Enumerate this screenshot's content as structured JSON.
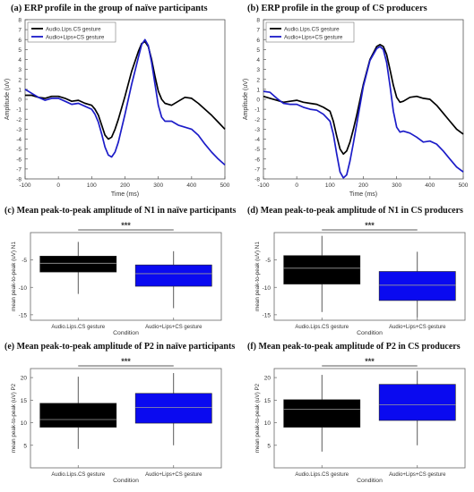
{
  "chart_data": [
    {
      "id": "a",
      "type": "line",
      "title": "(a) ERP profile in the group of naïve participants",
      "xlabel": "Time (ms)",
      "ylabel": "Amplitude (uV)",
      "xlim": [
        -100,
        500
      ],
      "ylim": [
        -8,
        8
      ],
      "xticks": [
        -100,
        0,
        100,
        200,
        300,
        400,
        500
      ],
      "yticks": [
        -8,
        -7,
        -6,
        -5,
        -4,
        -3,
        -2,
        -1,
        0,
        1,
        2,
        3,
        4,
        5,
        6,
        7,
        8
      ],
      "legend_position": "top-left",
      "series": [
        {
          "name": "Audio.Lips.CS gesture",
          "color": "#000000",
          "x": [
            -100,
            -80,
            -60,
            -40,
            -20,
            0,
            20,
            40,
            60,
            80,
            100,
            110,
            120,
            130,
            140,
            150,
            160,
            170,
            180,
            200,
            220,
            240,
            250,
            260,
            270,
            280,
            290,
            300,
            310,
            320,
            340,
            360,
            380,
            400,
            420,
            440,
            460,
            480,
            500
          ],
          "y": [
            0.4,
            0.4,
            0.2,
            0.1,
            0.3,
            0.3,
            0.1,
            -0.2,
            -0.1,
            -0.4,
            -0.6,
            -1.0,
            -1.6,
            -2.6,
            -3.6,
            -4.0,
            -3.8,
            -3.0,
            -2.0,
            0.3,
            2.8,
            4.8,
            5.6,
            5.8,
            5.3,
            4.0,
            2.3,
            0.8,
            0.0,
            -0.4,
            -0.6,
            -0.2,
            0.2,
            0.1,
            -0.4,
            -1.0,
            -1.6,
            -2.3,
            -3.0
          ]
        },
        {
          "name": "Audio+Lips+CS gesture",
          "color": "#1c1cc8",
          "x": [
            -100,
            -80,
            -60,
            -40,
            -20,
            0,
            20,
            40,
            60,
            80,
            100,
            110,
            120,
            130,
            140,
            150,
            160,
            170,
            180,
            200,
            220,
            240,
            250,
            260,
            270,
            280,
            290,
            300,
            310,
            320,
            340,
            360,
            380,
            400,
            420,
            440,
            460,
            480,
            500
          ],
          "y": [
            1.0,
            0.6,
            0.2,
            -0.1,
            0.1,
            0.1,
            -0.2,
            -0.5,
            -0.4,
            -0.7,
            -1.0,
            -1.5,
            -2.3,
            -3.5,
            -4.8,
            -5.6,
            -5.8,
            -5.3,
            -4.3,
            -1.5,
            1.5,
            4.2,
            5.5,
            6.0,
            5.4,
            3.7,
            1.5,
            -0.6,
            -1.8,
            -2.2,
            -2.2,
            -2.6,
            -2.8,
            -3.0,
            -3.6,
            -4.5,
            -5.3,
            -6.0,
            -6.6
          ]
        }
      ]
    },
    {
      "id": "b",
      "type": "line",
      "title": "(b) ERP profile in the group of CS  producers",
      "xlabel": "Time (ms)",
      "ylabel": "Amplitude (uV)",
      "xlim": [
        -100,
        500
      ],
      "ylim": [
        -8,
        8
      ],
      "xticks": [
        -100,
        0,
        100,
        200,
        300,
        400,
        500
      ],
      "yticks": [
        -8,
        -7,
        -6,
        -5,
        -4,
        -3,
        -2,
        -1,
        0,
        1,
        2,
        3,
        4,
        5,
        6,
        7,
        8
      ],
      "legend_position": "top-left",
      "series": [
        {
          "name": "Audio.Lips.CS gesture",
          "color": "#000000",
          "x": [
            -100,
            -80,
            -60,
            -40,
            -20,
            0,
            20,
            40,
            60,
            80,
            100,
            110,
            120,
            130,
            140,
            150,
            160,
            170,
            180,
            200,
            220,
            240,
            250,
            260,
            270,
            280,
            290,
            300,
            310,
            320,
            340,
            360,
            380,
            400,
            420,
            440,
            460,
            480,
            500
          ],
          "y": [
            0.3,
            0.1,
            -0.1,
            -0.3,
            -0.2,
            -0.1,
            -0.3,
            -0.4,
            -0.5,
            -0.8,
            -1.2,
            -2.2,
            -3.7,
            -5.0,
            -5.5,
            -5.2,
            -4.3,
            -3.0,
            -1.6,
            1.5,
            4.0,
            5.3,
            5.5,
            5.3,
            4.5,
            3.0,
            1.4,
            0.2,
            -0.3,
            -0.2,
            0.2,
            0.3,
            0.1,
            0.0,
            -0.6,
            -1.4,
            -2.2,
            -3.0,
            -3.5
          ]
        },
        {
          "name": "Audio+Lips+CS gesture",
          "color": "#1c1cc8",
          "x": [
            -100,
            -80,
            -60,
            -40,
            -20,
            0,
            20,
            40,
            60,
            80,
            100,
            110,
            120,
            130,
            140,
            150,
            160,
            170,
            180,
            200,
            220,
            240,
            250,
            260,
            270,
            280,
            290,
            300,
            310,
            320,
            340,
            360,
            380,
            400,
            420,
            440,
            460,
            480,
            500
          ],
          "y": [
            0.8,
            0.7,
            0.1,
            -0.4,
            -0.5,
            -0.5,
            -0.8,
            -1.0,
            -1.1,
            -1.5,
            -2.2,
            -3.5,
            -5.5,
            -7.3,
            -7.9,
            -7.6,
            -6.2,
            -4.4,
            -2.5,
            1.3,
            3.9,
            5.1,
            5.3,
            5.0,
            3.7,
            1.4,
            -1.2,
            -2.8,
            -3.3,
            -3.2,
            -3.4,
            -3.8,
            -4.3,
            -4.2,
            -4.5,
            -5.2,
            -6.0,
            -6.8,
            -7.3
          ]
        }
      ]
    },
    {
      "id": "c",
      "type": "boxplot",
      "title": "(c) Mean peak-to-peak amplitude of N1 in naïve participants",
      "xlabel": "Condition",
      "ylabel": "mean peak-to-peak (uV) N1",
      "ylim": [
        -16,
        0
      ],
      "yticks": [
        -15,
        -10,
        -5
      ],
      "significance": "***",
      "categories": [
        "Audio.Lips.CS gesture",
        "Audio+Lips+CS gesture"
      ],
      "boxes": [
        {
          "color": "#000000",
          "whisker_low": -11.2,
          "q1": -7.2,
          "median": -5.6,
          "q3": -4.3,
          "whisker_high": -1.7
        },
        {
          "color": "#0a0af0",
          "whisker_low": -13.8,
          "q1": -9.8,
          "median": -7.5,
          "q3": -5.9,
          "whisker_high": -3.4
        }
      ]
    },
    {
      "id": "d",
      "type": "boxplot",
      "title": "(d) Mean peak-to-peak amplitude of N1 in CS producers",
      "xlabel": "Condition",
      "ylabel": "mean peak-to-peak (uV) N1",
      "ylim": [
        -16,
        0
      ],
      "yticks": [
        -15,
        -10,
        -5
      ],
      "significance": "***",
      "categories": [
        "Audio.Lips.CS gesture",
        "Audio+Lips+CS gesture"
      ],
      "boxes": [
        {
          "color": "#000000",
          "whisker_low": -14.5,
          "q1": -9.4,
          "median": -6.5,
          "q3": -4.2,
          "whisker_high": -0.6
        },
        {
          "color": "#0a0af0",
          "whisker_low": -15.5,
          "q1": -12.4,
          "median": -9.6,
          "q3": -7.1,
          "whisker_high": -3.5
        }
      ]
    },
    {
      "id": "e",
      "type": "boxplot",
      "title": "(e) Mean peak-to-peak amplitude of P2 in naïve participants",
      "xlabel": "Condition",
      "ylabel": "mean peak-to-peak (uV) P2",
      "ylim": [
        0,
        22
      ],
      "yticks": [
        5,
        10,
        15,
        20
      ],
      "significance": "***",
      "categories": [
        "Audio.Lips.CS gesture",
        "Audio+Lips+CS gesture"
      ],
      "boxes": [
        {
          "color": "#000000",
          "whisker_low": 4.2,
          "q1": 9.0,
          "median": 10.7,
          "q3": 14.3,
          "whisker_high": 20.2
        },
        {
          "color": "#0a0af0",
          "whisker_low": 5.0,
          "q1": 9.9,
          "median": 13.4,
          "q3": 16.5,
          "whisker_high": 21.0
        }
      ]
    },
    {
      "id": "f",
      "type": "boxplot",
      "title": "(f) Mean peak-to-peak amplitude of P2 in CS producers",
      "xlabel": "Condition",
      "ylabel": "mean peak-to-peak (uV) P2",
      "ylim": [
        0,
        22
      ],
      "yticks": [
        5,
        10,
        15,
        20
      ],
      "significance": "***",
      "categories": [
        "Audio.Lips.CS gesture",
        "Audio+Lips+CS gesture"
      ],
      "boxes": [
        {
          "color": "#000000",
          "whisker_low": 3.6,
          "q1": 9.0,
          "median": 13.0,
          "q3": 15.1,
          "whisker_high": 20.6
        },
        {
          "color": "#0a0af0",
          "whisker_low": 5.0,
          "q1": 10.5,
          "median": 14.0,
          "q3": 18.5,
          "whisker_high": 21.5
        }
      ]
    }
  ]
}
